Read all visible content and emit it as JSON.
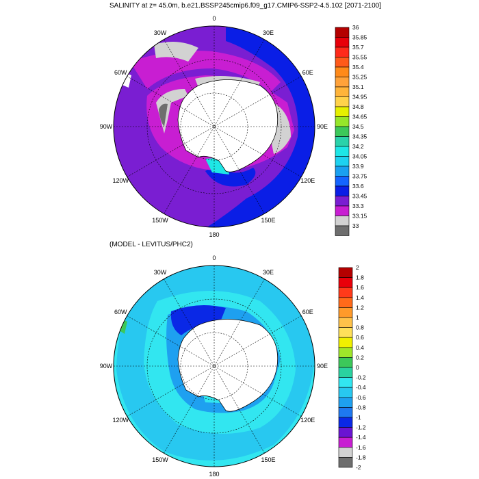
{
  "top_panel": {
    "title": "SALINITY at z=  45.0m, b.e21.BSSP245cmip6.f09_g17.CMIP6-SSP2-4.5.102 [2071-2100]",
    "lon_labels": [
      "0",
      "30E",
      "60E",
      "90E",
      "120E",
      "150E",
      "180",
      "150W",
      "120W",
      "90W",
      "60W",
      "30W"
    ],
    "colorbar": {
      "labels": [
        "36",
        "35.85",
        "35.7",
        "35.55",
        "35.4",
        "35.25",
        "35.1",
        "34.95",
        "34.8",
        "34.65",
        "34.5",
        "34.35",
        "34.2",
        "34.05",
        "33.9",
        "33.75",
        "33.6",
        "33.45",
        "33.3",
        "33.15",
        "33"
      ],
      "colors": [
        "#b40000",
        "#e8000a",
        "#ff2a1a",
        "#ff5a1a",
        "#ff8a1a",
        "#ffa23a",
        "#ffb43a",
        "#ffd24a",
        "#e6f000",
        "#96e62a",
        "#3cc85a",
        "#2ad2aa",
        "#1ee6e6",
        "#1ed2f0",
        "#1aa0f0",
        "#1464ff",
        "#0a1ee6",
        "#7a1ed2",
        "#c81ed2",
        "#d2d2d2",
        "#6e6e6e"
      ]
    }
  },
  "bottom_panel": {
    "title": "(MODEL - LEVITUS/PHC2)",
    "lon_labels": [
      "0",
      "30E",
      "60E",
      "90E",
      "120E",
      "150E",
      "180",
      "150W",
      "120W",
      "90W",
      "60W",
      "30W"
    ],
    "colorbar": {
      "labels": [
        "2",
        "1.8",
        "1.6",
        "1.4",
        "1.2",
        "1",
        "0.8",
        "0.6",
        "0.4",
        "0.2",
        "0",
        "-0.2",
        "-0.4",
        "-0.6",
        "-0.8",
        "-1",
        "-1.2",
        "-1.4",
        "-1.6",
        "-1.8",
        "-2"
      ],
      "colors": [
        "#b40000",
        "#e8000a",
        "#ff3a1a",
        "#ff6a1a",
        "#ff9a2a",
        "#ffc24a",
        "#ffe05a",
        "#f0f000",
        "#a0e62a",
        "#3cc85a",
        "#2ad2a0",
        "#32e6f0",
        "#28c8f0",
        "#1ea0f0",
        "#1e78f0",
        "#0a28e6",
        "#6a14d2",
        "#c81ed2",
        "#d2d2d2",
        "#6e6e6e"
      ]
    }
  }
}
